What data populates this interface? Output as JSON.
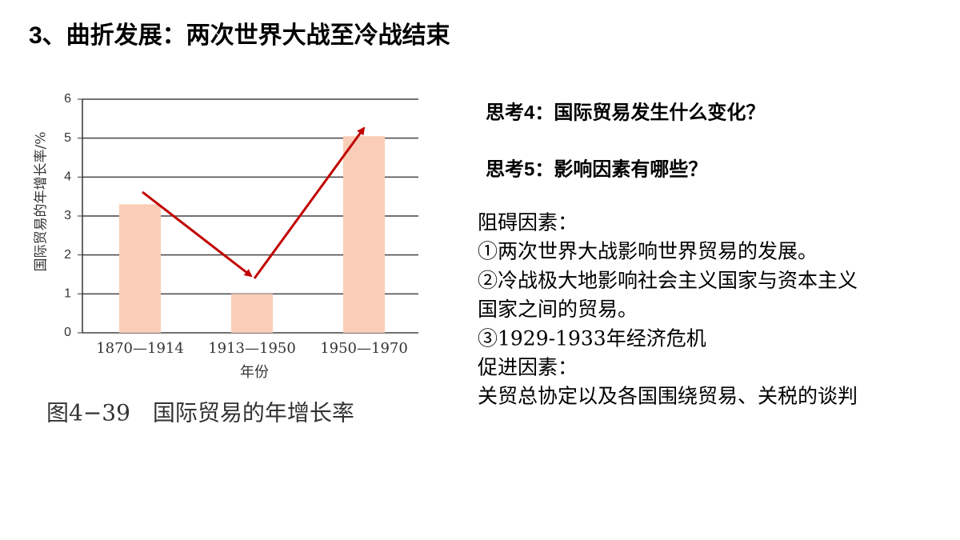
{
  "title": "3、曲折发展：两次世界大战至冷战结束",
  "chart_data": {
    "type": "bar",
    "caption": "图4−39　国际贸易的年增长率",
    "ylabel": "国际贸易的年增长率/%",
    "xlabel": "年份",
    "categories": [
      "1870—1914",
      "1913—1950",
      "1950—1970"
    ],
    "values": [
      3.3,
      1.0,
      5.05
    ],
    "color": "#f9cdb8",
    "ylim": [
      0,
      6
    ],
    "yticks": [
      0,
      1,
      2,
      3,
      4,
      5,
      6
    ],
    "grid": true
  },
  "questions": [
    "思考4：国际贸易发生什么变化？",
    "思考5：影响因素有哪些？"
  ],
  "factors": [
    "阻碍因素：",
    "①两次世界大战影响世界贸易的发展。",
    "②冷战极大地影响社会主义国家与资本主义",
    "国家之间的贸易。",
    "③1929-1933年经济危机",
    "促进因素：",
    "关贸总协定以及各国围绕贸易、关税的谈判"
  ]
}
